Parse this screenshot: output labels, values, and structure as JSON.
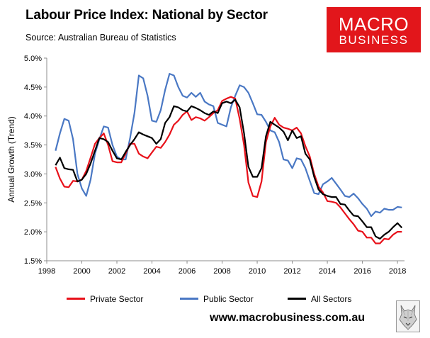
{
  "header": {
    "title": "Labour Price Index: National by Sector",
    "source": "Source: Australian Bureau of Statistics"
  },
  "logo": {
    "line1": "MACRO",
    "line2": "BUSINESS"
  },
  "footer": {
    "website": "www.macrobusiness.com.au"
  },
  "colors": {
    "private": "#e8111a",
    "public": "#4a78c4",
    "all": "#000000",
    "logo_bg": "#e2161b"
  },
  "icons": {
    "watermark": "wolf-icon"
  },
  "chart_data": {
    "type": "line",
    "ylabel": "Annual Growth (Trend)",
    "xlabel": "",
    "xlim": [
      1998,
      2018.4
    ],
    "ylim": [
      1.5,
      5.0
    ],
    "x_ticks": [
      1998,
      2000,
      2002,
      2004,
      2006,
      2008,
      2010,
      2012,
      2014,
      2016,
      2018
    ],
    "x_tick_labels": [
      "1998",
      "2000",
      "2002",
      "2004",
      "2006",
      "2008",
      "2010",
      "2012",
      "2014",
      "2016",
      "2018"
    ],
    "y_ticks": [
      1.5,
      2.0,
      2.5,
      3.0,
      3.5,
      4.0,
      4.5,
      5.0
    ],
    "y_tick_labels": [
      "1.5%",
      "2.0%",
      "2.5%",
      "3.0%",
      "3.5%",
      "4.0%",
      "4.5%",
      "5.0%"
    ],
    "grid": false,
    "legend_position": "bottom",
    "series": [
      {
        "name": "Private Sector",
        "color": "#e8111a",
        "points": [
          [
            1998.5,
            3.12
          ],
          [
            1998.75,
            2.92
          ],
          [
            1999,
            2.78
          ],
          [
            1999.25,
            2.77
          ],
          [
            1999.5,
            2.88
          ],
          [
            1999.75,
            2.87
          ],
          [
            2000,
            2.9
          ],
          [
            2000.25,
            3.05
          ],
          [
            2000.5,
            3.28
          ],
          [
            2000.75,
            3.52
          ],
          [
            2001,
            3.62
          ],
          [
            2001.25,
            3.7
          ],
          [
            2001.5,
            3.5
          ],
          [
            2001.75,
            3.22
          ],
          [
            2002,
            3.2
          ],
          [
            2002.25,
            3.2
          ],
          [
            2002.5,
            3.35
          ],
          [
            2002.75,
            3.52
          ],
          [
            2003,
            3.52
          ],
          [
            2003.25,
            3.35
          ],
          [
            2003.5,
            3.3
          ],
          [
            2003.75,
            3.27
          ],
          [
            2004,
            3.37
          ],
          [
            2004.25,
            3.47
          ],
          [
            2004.5,
            3.45
          ],
          [
            2004.75,
            3.55
          ],
          [
            2005,
            3.68
          ],
          [
            2005.25,
            3.85
          ],
          [
            2005.5,
            3.92
          ],
          [
            2005.75,
            4.02
          ],
          [
            2006,
            4.08
          ],
          [
            2006.25,
            3.93
          ],
          [
            2006.5,
            3.98
          ],
          [
            2006.75,
            3.96
          ],
          [
            2007,
            3.92
          ],
          [
            2007.25,
            3.98
          ],
          [
            2007.5,
            4.05
          ],
          [
            2007.75,
            4.1
          ],
          [
            2008,
            4.26
          ],
          [
            2008.25,
            4.3
          ],
          [
            2008.5,
            4.33
          ],
          [
            2008.75,
            4.3
          ],
          [
            2009,
            3.95
          ],
          [
            2009.25,
            3.5
          ],
          [
            2009.5,
            2.85
          ],
          [
            2009.75,
            2.62
          ],
          [
            2010,
            2.6
          ],
          [
            2010.25,
            2.87
          ],
          [
            2010.5,
            3.55
          ],
          [
            2010.75,
            3.82
          ],
          [
            2011,
            3.97
          ],
          [
            2011.25,
            3.85
          ],
          [
            2011.5,
            3.8
          ],
          [
            2011.75,
            3.78
          ],
          [
            2012,
            3.75
          ],
          [
            2012.25,
            3.8
          ],
          [
            2012.5,
            3.7
          ],
          [
            2012.75,
            3.48
          ],
          [
            2013,
            3.3
          ],
          [
            2013.25,
            3.0
          ],
          [
            2013.5,
            2.78
          ],
          [
            2013.75,
            2.68
          ],
          [
            2014,
            2.53
          ],
          [
            2014.25,
            2.52
          ],
          [
            2014.5,
            2.5
          ],
          [
            2014.75,
            2.42
          ],
          [
            2015,
            2.32
          ],
          [
            2015.25,
            2.22
          ],
          [
            2015.5,
            2.13
          ],
          [
            2015.75,
            2.02
          ],
          [
            2016,
            2.0
          ],
          [
            2016.25,
            1.9
          ],
          [
            2016.5,
            1.9
          ],
          [
            2016.75,
            1.8
          ],
          [
            2017,
            1.8
          ],
          [
            2017.25,
            1.88
          ],
          [
            2017.5,
            1.87
          ],
          [
            2017.75,
            1.95
          ],
          [
            2018,
            2.0
          ],
          [
            2018.25,
            2.0
          ]
        ]
      },
      {
        "name": "Public Sector",
        "color": "#4a78c4",
        "points": [
          [
            1998.5,
            3.4
          ],
          [
            1998.75,
            3.7
          ],
          [
            1999,
            3.95
          ],
          [
            1999.25,
            3.92
          ],
          [
            1999.5,
            3.6
          ],
          [
            1999.75,
            3.0
          ],
          [
            2000,
            2.75
          ],
          [
            2000.25,
            2.62
          ],
          [
            2000.5,
            2.9
          ],
          [
            2000.75,
            3.35
          ],
          [
            2001,
            3.6
          ],
          [
            2001.25,
            3.82
          ],
          [
            2001.5,
            3.8
          ],
          [
            2001.75,
            3.5
          ],
          [
            2002,
            3.3
          ],
          [
            2002.25,
            3.25
          ],
          [
            2002.5,
            3.25
          ],
          [
            2002.75,
            3.62
          ],
          [
            2003,
            4.05
          ],
          [
            2003.25,
            4.7
          ],
          [
            2003.5,
            4.65
          ],
          [
            2003.75,
            4.35
          ],
          [
            2004,
            3.92
          ],
          [
            2004.25,
            3.9
          ],
          [
            2004.5,
            4.1
          ],
          [
            2004.75,
            4.45
          ],
          [
            2005,
            4.73
          ],
          [
            2005.25,
            4.7
          ],
          [
            2005.5,
            4.5
          ],
          [
            2005.75,
            4.35
          ],
          [
            2006,
            4.32
          ],
          [
            2006.25,
            4.4
          ],
          [
            2006.5,
            4.33
          ],
          [
            2006.75,
            4.4
          ],
          [
            2007,
            4.25
          ],
          [
            2007.25,
            4.2
          ],
          [
            2007.5,
            4.17
          ],
          [
            2007.75,
            3.88
          ],
          [
            2008,
            3.85
          ],
          [
            2008.25,
            3.82
          ],
          [
            2008.5,
            4.15
          ],
          [
            2008.75,
            4.35
          ],
          [
            2009,
            4.53
          ],
          [
            2009.25,
            4.5
          ],
          [
            2009.5,
            4.4
          ],
          [
            2009.75,
            4.22
          ],
          [
            2010,
            4.03
          ],
          [
            2010.25,
            4.02
          ],
          [
            2010.5,
            3.9
          ],
          [
            2010.75,
            3.75
          ],
          [
            2011,
            3.72
          ],
          [
            2011.25,
            3.55
          ],
          [
            2011.5,
            3.25
          ],
          [
            2011.75,
            3.23
          ],
          [
            2012,
            3.1
          ],
          [
            2012.25,
            3.27
          ],
          [
            2012.5,
            3.25
          ],
          [
            2012.75,
            3.1
          ],
          [
            2013,
            2.88
          ],
          [
            2013.25,
            2.67
          ],
          [
            2013.5,
            2.65
          ],
          [
            2013.75,
            2.82
          ],
          [
            2014,
            2.87
          ],
          [
            2014.25,
            2.93
          ],
          [
            2014.5,
            2.83
          ],
          [
            2014.75,
            2.73
          ],
          [
            2015,
            2.62
          ],
          [
            2015.25,
            2.6
          ],
          [
            2015.5,
            2.66
          ],
          [
            2015.75,
            2.58
          ],
          [
            2016,
            2.48
          ],
          [
            2016.25,
            2.4
          ],
          [
            2016.5,
            2.27
          ],
          [
            2016.75,
            2.35
          ],
          [
            2017,
            2.33
          ],
          [
            2017.25,
            2.4
          ],
          [
            2017.5,
            2.38
          ],
          [
            2017.75,
            2.38
          ],
          [
            2018,
            2.43
          ],
          [
            2018.25,
            2.42
          ]
        ]
      },
      {
        "name": "All Sectors",
        "color": "#000000",
        "points": [
          [
            1998.5,
            3.15
          ],
          [
            1998.75,
            3.28
          ],
          [
            1999,
            3.1
          ],
          [
            1999.25,
            3.08
          ],
          [
            1999.5,
            3.07
          ],
          [
            1999.75,
            2.87
          ],
          [
            2000,
            2.9
          ],
          [
            2000.25,
            3.0
          ],
          [
            2000.5,
            3.18
          ],
          [
            2000.75,
            3.4
          ],
          [
            2001,
            3.62
          ],
          [
            2001.25,
            3.6
          ],
          [
            2001.5,
            3.55
          ],
          [
            2001.75,
            3.4
          ],
          [
            2002,
            3.27
          ],
          [
            2002.25,
            3.25
          ],
          [
            2002.5,
            3.38
          ],
          [
            2002.75,
            3.5
          ],
          [
            2003,
            3.6
          ],
          [
            2003.25,
            3.72
          ],
          [
            2003.5,
            3.68
          ],
          [
            2003.75,
            3.65
          ],
          [
            2004,
            3.62
          ],
          [
            2004.25,
            3.52
          ],
          [
            2004.5,
            3.6
          ],
          [
            2004.75,
            3.88
          ],
          [
            2005,
            3.98
          ],
          [
            2005.25,
            4.17
          ],
          [
            2005.5,
            4.15
          ],
          [
            2005.75,
            4.1
          ],
          [
            2006,
            4.08
          ],
          [
            2006.25,
            4.17
          ],
          [
            2006.5,
            4.14
          ],
          [
            2006.75,
            4.1
          ],
          [
            2007,
            4.05
          ],
          [
            2007.25,
            4.02
          ],
          [
            2007.5,
            4.08
          ],
          [
            2007.75,
            4.05
          ],
          [
            2008,
            4.22
          ],
          [
            2008.25,
            4.25
          ],
          [
            2008.5,
            4.22
          ],
          [
            2008.75,
            4.28
          ],
          [
            2009,
            4.15
          ],
          [
            2009.25,
            3.7
          ],
          [
            2009.5,
            3.12
          ],
          [
            2009.75,
            2.95
          ],
          [
            2010,
            2.95
          ],
          [
            2010.25,
            3.1
          ],
          [
            2010.5,
            3.65
          ],
          [
            2010.75,
            3.9
          ],
          [
            2011,
            3.85
          ],
          [
            2011.25,
            3.8
          ],
          [
            2011.5,
            3.73
          ],
          [
            2011.75,
            3.58
          ],
          [
            2012,
            3.75
          ],
          [
            2012.25,
            3.62
          ],
          [
            2012.5,
            3.65
          ],
          [
            2012.75,
            3.35
          ],
          [
            2013,
            3.25
          ],
          [
            2013.25,
            2.95
          ],
          [
            2013.5,
            2.73
          ],
          [
            2013.75,
            2.65
          ],
          [
            2014,
            2.62
          ],
          [
            2014.25,
            2.6
          ],
          [
            2014.5,
            2.6
          ],
          [
            2014.75,
            2.48
          ],
          [
            2015,
            2.47
          ],
          [
            2015.25,
            2.37
          ],
          [
            2015.5,
            2.28
          ],
          [
            2015.75,
            2.27
          ],
          [
            2016,
            2.18
          ],
          [
            2016.25,
            2.08
          ],
          [
            2016.5,
            2.08
          ],
          [
            2016.75,
            1.92
          ],
          [
            2017,
            1.88
          ],
          [
            2017.25,
            1.95
          ],
          [
            2017.5,
            2.0
          ],
          [
            2017.75,
            2.08
          ],
          [
            2018,
            2.15
          ],
          [
            2018.25,
            2.07
          ]
        ]
      }
    ]
  }
}
